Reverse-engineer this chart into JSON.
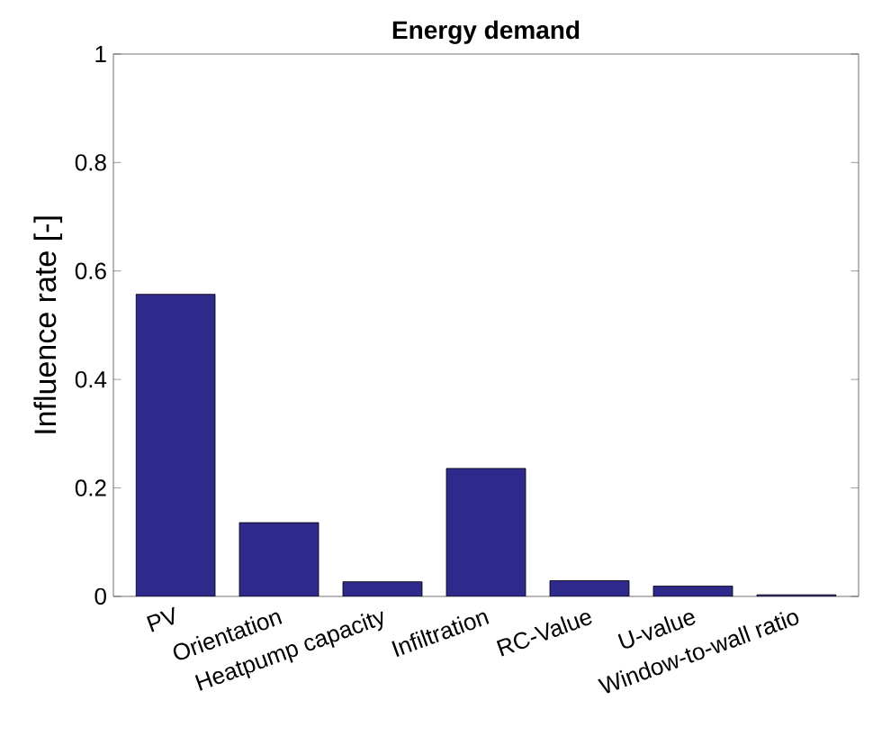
{
  "chart_data": {
    "type": "bar",
    "title": "Energy demand",
    "ylabel": "Influence rate [-]",
    "categories": [
      "PV",
      "Orientation",
      "Heatpump capacity",
      "Infiltration",
      "RC-Value",
      "U-value",
      "Window-to-wall ratio"
    ],
    "values": [
      0.557,
      0.136,
      0.027,
      0.236,
      0.029,
      0.019,
      0.003
    ],
    "color": "#2e2a8c",
    "ylim": [
      0,
      1
    ],
    "yticks": [
      0,
      0.2,
      0.4,
      0.6,
      0.8,
      1
    ],
    "grid": false
  }
}
